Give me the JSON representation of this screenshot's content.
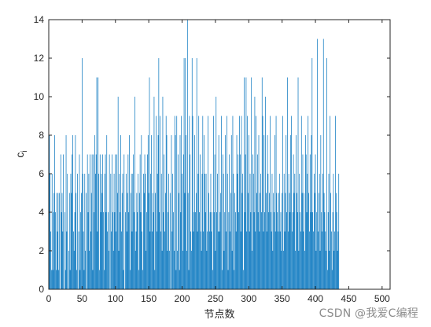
{
  "chart_data": {
    "type": "bar",
    "xlabel": "节点数",
    "ylabel": "c",
    "ylabel_subscript": "i",
    "xlim": [
      0,
      512
    ],
    "ylim": [
      0,
      14
    ],
    "xticks": [
      0,
      50,
      100,
      150,
      200,
      250,
      300,
      350,
      400,
      450,
      500
    ],
    "yticks": [
      0,
      2,
      4,
      6,
      8,
      10,
      12,
      14
    ],
    "grid": false,
    "legend": "none",
    "bar_color": "#0072bd",
    "values_note": "approximate",
    "series": [
      {
        "values": [
          8,
          6,
          3,
          1,
          6,
          1,
          4,
          5,
          8,
          4,
          1,
          5,
          3,
          5,
          1,
          5,
          0,
          7,
          4,
          5,
          3,
          7,
          0,
          4,
          1,
          8,
          3,
          6,
          0,
          2,
          5,
          1,
          6,
          5,
          7,
          8,
          3,
          2,
          4,
          8,
          5,
          1,
          6,
          0,
          3,
          7,
          1,
          4,
          5,
          12,
          6,
          3,
          1,
          6,
          2,
          5,
          0,
          7,
          4,
          6,
          2,
          7,
          3,
          5,
          7,
          1,
          7,
          4,
          8,
          6,
          7,
          11,
          3,
          11,
          6,
          1,
          7,
          4,
          6,
          5,
          7,
          4,
          1,
          6,
          7,
          4,
          8,
          3,
          4,
          2,
          7,
          0,
          6,
          3,
          7,
          4,
          2,
          6,
          4,
          7,
          3,
          7,
          5,
          10,
          2,
          6,
          4,
          8,
          3,
          5,
          6,
          1,
          7,
          0,
          4,
          6,
          3,
          5,
          7,
          4,
          8,
          1,
          5,
          6,
          3,
          6,
          7,
          4,
          10,
          2,
          3,
          5,
          4,
          6,
          1,
          5,
          7,
          4,
          8,
          3,
          1,
          6,
          5,
          7,
          6,
          2,
          4,
          7,
          8,
          5,
          11,
          3,
          6,
          8,
          3,
          5,
          4,
          10,
          1,
          5,
          9,
          3,
          6,
          8,
          12,
          4,
          9,
          3,
          6,
          2,
          10,
          4,
          7,
          3,
          5,
          9,
          8,
          2,
          4,
          6,
          2,
          5,
          0,
          8,
          3,
          6,
          4,
          2,
          9,
          8,
          1,
          9,
          2,
          7,
          5,
          1,
          8,
          4,
          9,
          6,
          2,
          7,
          12,
          5,
          12,
          8,
          2,
          14,
          5,
          1,
          9,
          7,
          3,
          2,
          12,
          9,
          3,
          4,
          8,
          4,
          5,
          12,
          3,
          6,
          9,
          4,
          7,
          3,
          2,
          6,
          9,
          3,
          8,
          6,
          4,
          6,
          2,
          3,
          9,
          5,
          3,
          4,
          6,
          3,
          4,
          1,
          9,
          4,
          7,
          2,
          10,
          4,
          6,
          3,
          8,
          3,
          4,
          5,
          9,
          1,
          7,
          6,
          2,
          4,
          8,
          3,
          9,
          6,
          1,
          4,
          7,
          3,
          5,
          8,
          2,
          9,
          6,
          1,
          5,
          4,
          3,
          8,
          6,
          7,
          4,
          9,
          7,
          3,
          9,
          5,
          6,
          1,
          11,
          4,
          7,
          11,
          3,
          9,
          5,
          8,
          3,
          6,
          4,
          11,
          2,
          7,
          6,
          4,
          10,
          3,
          9,
          5,
          7,
          4,
          8,
          3,
          5,
          6,
          4,
          11,
          9,
          3,
          8,
          4,
          10,
          5,
          3,
          8,
          6,
          4,
          5,
          9,
          4,
          3,
          6,
          2,
          5,
          4,
          8,
          3,
          9,
          5,
          4,
          3,
          5,
          6,
          3,
          4,
          2,
          5,
          9,
          2,
          6,
          3,
          5,
          8,
          4,
          11,
          3,
          6,
          5,
          4,
          8,
          9,
          3,
          4,
          7,
          5,
          6,
          2,
          8,
          5,
          4,
          11,
          2,
          6,
          4,
          3,
          9,
          5,
          7,
          3,
          5,
          2,
          8,
          7,
          4,
          6,
          9,
          5,
          3,
          7,
          4,
          8,
          12,
          4,
          3,
          6,
          5,
          7,
          2,
          4,
          13,
          3,
          5,
          6,
          2,
          8,
          4,
          3,
          6,
          13,
          5,
          4,
          3,
          2,
          12,
          1,
          4,
          6,
          2,
          9,
          5,
          3,
          1,
          4,
          6,
          2,
          3,
          9,
          5,
          4,
          2,
          3,
          6
        ]
      }
    ]
  },
  "watermark": "CSDN @我爱C编程"
}
